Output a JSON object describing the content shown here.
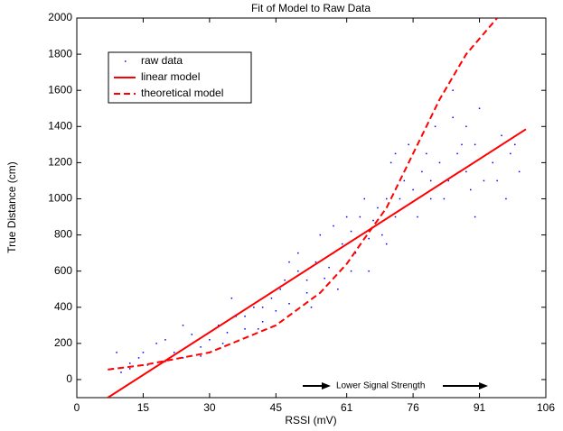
{
  "chart_data": {
    "type": "scatter",
    "title": "Fit of Model to Raw Data",
    "xlabel": "RSSI (mV)",
    "ylabel": "True Distance (cm)",
    "annotation": "Lower Signal Strength",
    "xlim": [
      0,
      106
    ],
    "ylim": [
      -100,
      2000
    ],
    "xticks": [
      0,
      15,
      30,
      45,
      61,
      76,
      91,
      106
    ],
    "yticks": [
      0,
      200,
      400,
      600,
      800,
      1000,
      1200,
      1400,
      1600,
      1800,
      2000
    ],
    "legend": "upper left",
    "series": [
      {
        "name": "raw data",
        "color": "#0000ff",
        "style": "dot",
        "x": [
          8,
          10,
          12,
          14,
          9,
          16,
          18,
          20,
          22,
          24,
          26,
          28,
          30,
          32,
          34,
          36,
          38,
          40,
          42,
          44,
          46,
          48,
          50,
          52,
          54,
          56,
          58,
          60,
          62,
          64,
          66,
          68,
          70,
          72,
          74,
          76,
          78,
          80,
          82,
          84,
          86,
          88,
          90,
          92,
          94,
          96,
          98,
          100,
          45,
          47,
          50,
          53,
          55,
          57,
          59,
          61,
          63,
          65,
          67,
          69,
          71,
          73,
          75,
          77,
          79,
          81,
          83,
          85,
          87,
          89,
          91,
          93,
          95,
          97,
          99,
          85,
          90,
          72,
          66,
          58,
          52,
          48,
          42,
          38,
          33,
          28,
          24,
          20,
          15,
          12,
          35,
          41,
          62,
          70,
          80,
          88
        ],
        "y": [
          60,
          40,
          90,
          120,
          150,
          80,
          200,
          100,
          150,
          120,
          250,
          180,
          220,
          300,
          260,
          350,
          280,
          400,
          320,
          450,
          500,
          420,
          600,
          480,
          650,
          560,
          700,
          750,
          820,
          900,
          780,
          950,
          1000,
          900,
          1100,
          1050,
          1150,
          1000,
          1200,
          1100,
          1250,
          1150,
          1300,
          1100,
          1200,
          1350,
          1250,
          1150,
          380,
          550,
          700,
          400,
          800,
          620,
          500,
          900,
          700,
          1000,
          880,
          800,
          1200,
          1000,
          1300,
          900,
          1250,
          1400,
          1000,
          1450,
          1300,
          1050,
          1500,
          1250,
          1100,
          1000,
          1300,
          1600,
          900,
          1250,
          600,
          850,
          550,
          650,
          400,
          350,
          200,
          130,
          300,
          220,
          150,
          60,
          450,
          280,
          600,
          750,
          1100,
          1400
        ]
      },
      {
        "name": "linear model",
        "color": "#ff0000",
        "style": "solid",
        "x": [
          7,
          101.5
        ],
        "y": [
          -100,
          1385
        ]
      },
      {
        "name": "theoretical model",
        "color": "#ff0000",
        "style": "dashed",
        "x": [
          7,
          15,
          30,
          45,
          55,
          61,
          65,
          70,
          76,
          82,
          88,
          95
        ],
        "y": [
          55,
          80,
          150,
          300,
          480,
          640,
          780,
          950,
          1250,
          1550,
          1800,
          2000
        ]
      }
    ]
  }
}
